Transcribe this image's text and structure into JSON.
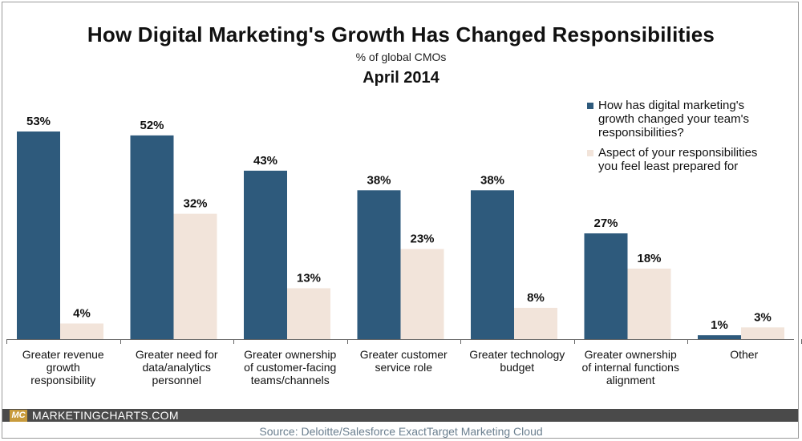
{
  "title": "How Digital Marketing's Growth Has Changed Responsibilities",
  "subtitle": "% of global CMOs",
  "date": "April 2014",
  "brand": "MARKETINGCHARTS.COM",
  "logo": "MC",
  "source": "Source: Deloitte/Salesforce ExactTarget Marketing Cloud",
  "colors": {
    "series1": "#2e5a7c",
    "series2": "#f2e4da",
    "footer": "#4a4a4a",
    "logo": "#c89b3c"
  },
  "chart_data": {
    "type": "bar",
    "categories": [
      "Greater revenue growth responsibility",
      "Greater need for data/analytics personnel",
      "Greater ownership of customer-facing teams/channels",
      "Greater customer service role",
      "Greater technology budget",
      "Greater ownership of internal functions alignment",
      "Other"
    ],
    "category_lines": [
      [
        "Greater revenue",
        "growth",
        "responsibility"
      ],
      [
        "Greater need for",
        "data/analytics",
        "personnel"
      ],
      [
        "Greater ownership",
        "of customer-facing",
        "teams/channels"
      ],
      [
        "Greater customer",
        "service role"
      ],
      [
        "Greater technology",
        "budget"
      ],
      [
        "Greater ownership",
        "of internal functions",
        "alignment"
      ],
      [
        "Other"
      ]
    ],
    "series": [
      {
        "name": "How has digital marketing's growth changed your team's responsibilities?",
        "values": [
          53,
          52,
          43,
          38,
          38,
          27,
          1
        ],
        "labels": [
          "53%",
          "52%",
          "43%",
          "38%",
          "38%",
          "27%",
          "1%"
        ]
      },
      {
        "name": "Aspect of your responsibilities you feel least prepared for",
        "values": [
          4,
          32,
          13,
          23,
          8,
          18,
          3
        ],
        "labels": [
          "4%",
          "32%",
          "13%",
          "23%",
          "8%",
          "18%",
          "3%"
        ]
      }
    ],
    "legend_lines": [
      [
        "How has digital marketing's",
        "growth changed your team's",
        "responsibilities?"
      ],
      [
        "Aspect of your responsibilities",
        "you feel least prepared for"
      ]
    ],
    "ylim": [
      0,
      53
    ],
    "grid": false,
    "legend_position": "top-right"
  }
}
